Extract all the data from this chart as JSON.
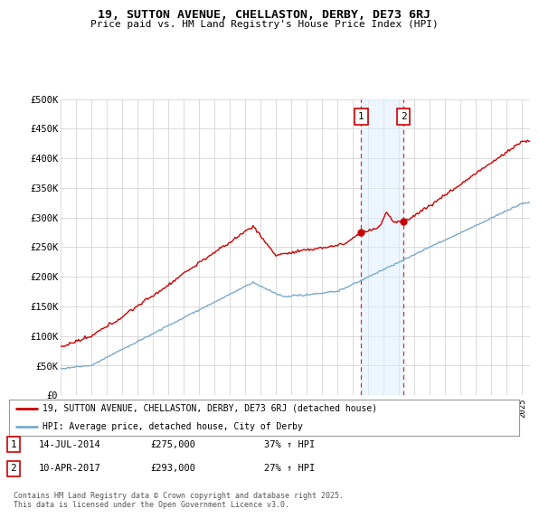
{
  "title": "19, SUTTON AVENUE, CHELLASTON, DERBY, DE73 6RJ",
  "subtitle": "Price paid vs. HM Land Registry's House Price Index (HPI)",
  "ylabel_ticks": [
    "£0",
    "£50K",
    "£100K",
    "£150K",
    "£200K",
    "£250K",
    "£300K",
    "£350K",
    "£400K",
    "£450K",
    "£500K"
  ],
  "ytick_values": [
    0,
    50000,
    100000,
    150000,
    200000,
    250000,
    300000,
    350000,
    400000,
    450000,
    500000
  ],
  "ylim": [
    0,
    500000
  ],
  "xlim_start": 1995,
  "xlim_end": 2025.5,
  "red_line_color": "#cc0000",
  "blue_line_color": "#7aaaca",
  "sale1_year": 2014.536,
  "sale1_price": 275000,
  "sale2_year": 2017.274,
  "sale2_price": 293000,
  "shade_color": "#ddeeff",
  "shade_alpha": 0.5,
  "legend1_label": "19, SUTTON AVENUE, CHELLASTON, DERBY, DE73 6RJ (detached house)",
  "legend2_label": "HPI: Average price, detached house, City of Derby",
  "annotation1_date": "14-JUL-2014",
  "annotation1_price": "£275,000",
  "annotation1_hpi": "37% ↑ HPI",
  "annotation2_date": "10-APR-2017",
  "annotation2_price": "£293,000",
  "annotation2_hpi": "27% ↑ HPI",
  "footer": "Contains HM Land Registry data © Crown copyright and database right 2025.\nThis data is licensed under the Open Government Licence v3.0.",
  "background_color": "#ffffff",
  "grid_color": "#cccccc"
}
